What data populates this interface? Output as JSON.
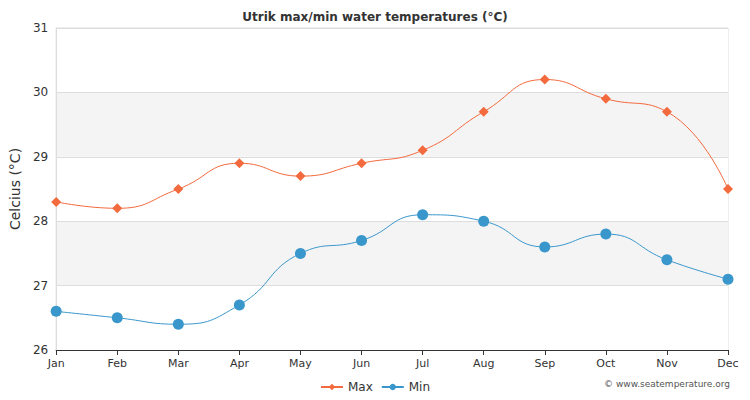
{
  "chart_data": {
    "type": "line",
    "title": "Utrik max/min water temperatures (°C)",
    "y_label": "Celcius (°C)",
    "annotations": [
      "© www.seatemperature.org"
    ],
    "categories": [
      "Jan",
      "Feb",
      "Mar",
      "Apr",
      "May",
      "Jun",
      "Jul",
      "Aug",
      "Sep",
      "Oct",
      "Nov",
      "Dec"
    ],
    "series": [
      {
        "name": "Max",
        "color": "#f26a3d",
        "marker": "diamond",
        "values": [
          28.3,
          28.2,
          28.5,
          28.9,
          28.7,
          28.9,
          29.1,
          29.7,
          30.2,
          29.9,
          29.7,
          28.5
        ]
      },
      {
        "name": "Min",
        "color": "#3a97cb",
        "marker": "circle",
        "values": [
          26.6,
          26.5,
          26.4,
          26.7,
          27.5,
          27.7,
          28.1,
          28.0,
          27.6,
          27.8,
          27.4,
          27.1
        ]
      }
    ],
    "ylim": [
      26,
      31
    ],
    "yticks": [
      26,
      27,
      28,
      29,
      30,
      31
    ],
    "grid": true,
    "legend": "bottom"
  }
}
